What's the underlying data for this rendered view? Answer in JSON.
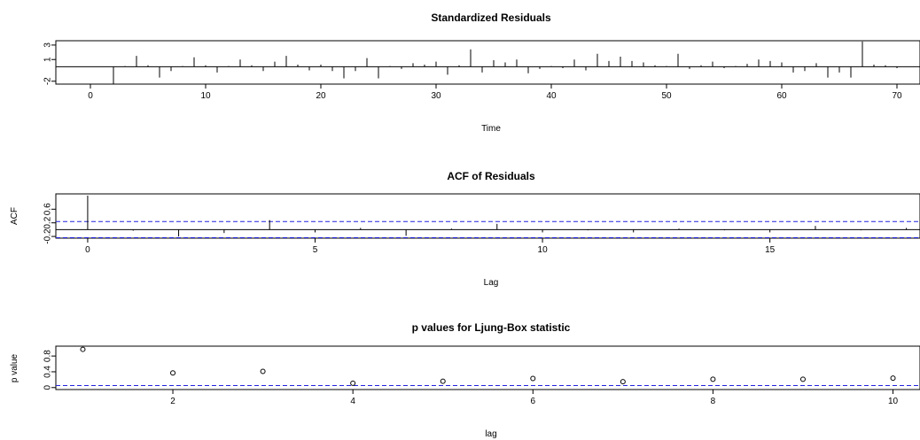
{
  "chart_data": [
    {
      "type": "line",
      "title": "Standardized Residuals",
      "xlabel": "Time",
      "ylabel": "",
      "xlim": [
        -3,
        72
      ],
      "ylim": [
        -2.4,
        3.6
      ],
      "xticks": [
        0,
        10,
        20,
        30,
        40,
        50,
        60,
        70
      ],
      "yticks": [
        -2,
        1,
        3
      ],
      "baseline": 0,
      "series": [
        {
          "x": [
            2,
            3,
            4,
            5,
            6,
            7,
            8,
            9,
            10,
            11,
            12,
            13,
            14,
            15,
            16,
            17,
            18,
            19,
            20,
            21,
            22,
            23,
            24,
            25,
            26,
            27,
            28,
            29,
            30,
            31,
            32,
            33,
            34,
            35,
            36,
            37,
            38,
            39,
            40,
            41,
            42,
            43,
            44,
            45,
            46,
            47,
            48,
            49,
            50,
            51,
            52,
            53,
            54,
            55,
            56,
            57,
            58,
            59,
            60,
            61,
            62,
            63,
            64,
            65,
            66,
            67,
            68,
            69,
            70
          ],
          "values": [
            -2.4,
            0.1,
            1.5,
            0.2,
            -1.5,
            -0.6,
            0.1,
            1.3,
            0.2,
            -0.8,
            0.1,
            1.0,
            0.2,
            -0.6,
            0.7,
            1.5,
            0.3,
            -0.5,
            0.3,
            -0.6,
            -1.6,
            -0.6,
            1.2,
            -1.6,
            0.1,
            -0.3,
            0.5,
            0.3,
            0.7,
            -1.1,
            0.2,
            2.4,
            -0.8,
            0.9,
            0.6,
            1.0,
            -0.9,
            -0.3,
            0.1,
            -0.2,
            1.0,
            -0.5,
            1.8,
            0.8,
            1.4,
            0.8,
            0.6,
            0.2,
            0.1,
            1.8,
            -0.3,
            0.2,
            0.7,
            -0.2,
            0.1,
            0.4,
            1.0,
            0.8,
            0.6,
            -0.8,
            -0.6,
            0.5,
            -1.5,
            -0.8,
            -1.5,
            3.5,
            0.3,
            0.2,
            -0.2
          ]
        }
      ]
    },
    {
      "type": "bar",
      "title": "ACF of Residuals",
      "xlabel": "Lag",
      "ylabel": "ACF",
      "xlim": [
        -0.7,
        18.3
      ],
      "ylim": [
        -0.25,
        1.05
      ],
      "xticks": [
        0,
        5,
        10,
        15
      ],
      "yticks": [
        -0.2,
        0.2,
        0.6
      ],
      "ci": [
        0.236,
        -0.236
      ],
      "lags": [
        0,
        1,
        2,
        3,
        4,
        5,
        6,
        7,
        8,
        9,
        10,
        11,
        12,
        13,
        14,
        15,
        16,
        17,
        18
      ],
      "values": [
        1.0,
        -0.03,
        -0.2,
        -0.1,
        0.28,
        -0.08,
        0.05,
        -0.18,
        0.03,
        0.17,
        -0.08,
        -0.02,
        -0.08,
        0.03,
        -0.02,
        -0.08,
        0.11,
        -0.02,
        0.05
      ]
    },
    {
      "type": "scatter",
      "title": "p values for Ljung-Box statistic",
      "xlabel": "lag",
      "ylabel": "p value",
      "xlim": [
        0.7,
        10.3
      ],
      "ylim": [
        -0.05,
        1.05
      ],
      "xticks": [
        2,
        4,
        6,
        8,
        10
      ],
      "yticks": [
        0.0,
        0.4,
        0.8
      ],
      "ref": 0.05,
      "x": [
        1,
        2,
        3,
        4,
        5,
        6,
        7,
        8,
        9,
        10
      ],
      "values": [
        0.97,
        0.37,
        0.41,
        0.11,
        0.16,
        0.23,
        0.15,
        0.21,
        0.21,
        0.24
      ]
    }
  ]
}
